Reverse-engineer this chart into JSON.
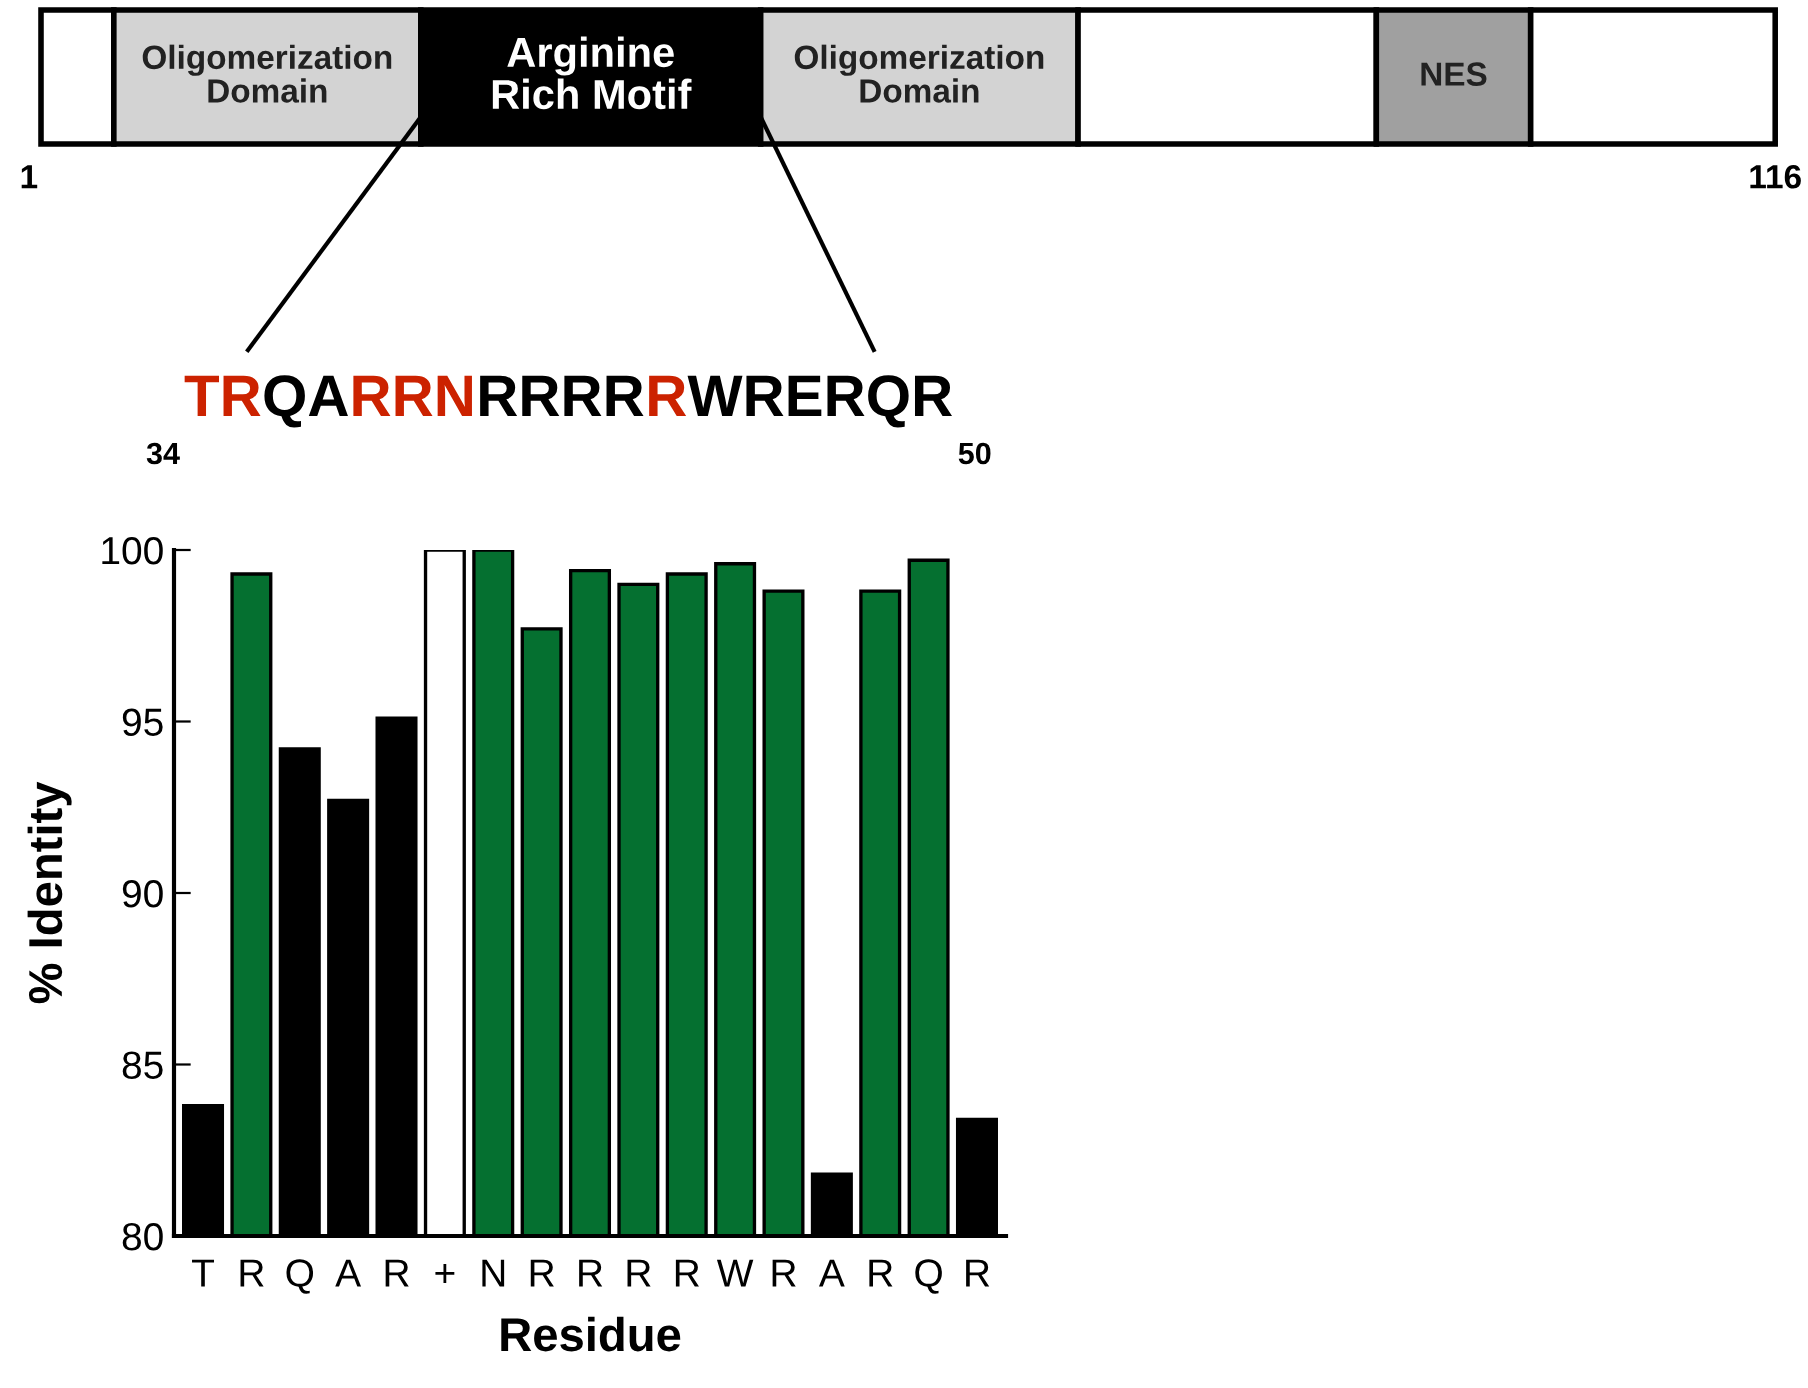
{
  "chart_data": [
    {
      "type": "other",
      "annotations": [
        "Oligomerization\nDomain",
        "Arginine\nRich Motif",
        "Oligomerization\nDomain",
        "NES",
        "1",
        "116"
      ]
    },
    {
      "type": "bar",
      "xlabel": "Residue",
      "ylabel": "% Identity",
      "categories": [
        "T",
        "R",
        "Q",
        "A",
        "R",
        "+",
        "N",
        "R",
        "R",
        "R",
        "R",
        "W",
        "R",
        "A",
        "R",
        "Q",
        "R"
      ],
      "values": [
        83.8,
        99.3,
        94.2,
        92.7,
        95.1,
        100,
        100,
        97.7,
        99.4,
        99.0,
        99.3,
        99.6,
        98.8,
        81.8,
        98.8,
        99.7,
        83.4
      ],
      "colors": [
        "#000000",
        "#057030",
        "#000000",
        "#000000",
        "#000000",
        "#ffffff",
        "#057030",
        "#057030",
        "#057030",
        "#057030",
        "#057030",
        "#057030",
        "#057030",
        "#000000",
        "#057030",
        "#057030",
        "#000000"
      ],
      "ylim": [
        80,
        100
      ],
      "yticks": [
        80,
        85,
        90,
        95,
        100
      ],
      "annotations": [
        "TR",
        "QA",
        "RRN",
        "RRRR",
        "R",
        "WRERQR",
        "34",
        "50"
      ]
    }
  ]
}
